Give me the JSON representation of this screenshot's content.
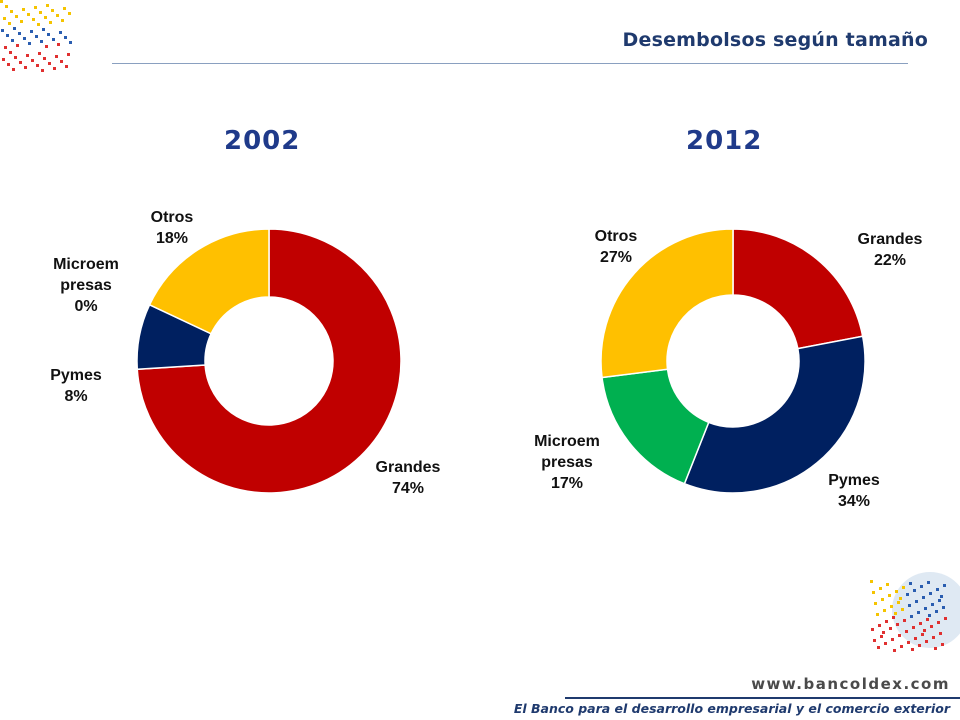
{
  "header": {
    "title": "Desembolsos según tamaño"
  },
  "footer": {
    "url": "www.bancoldex.com",
    "tagline": "El Banco para el desarrollo empresarial y el comercio exterior"
  },
  "colors": {
    "Grandes": "#c00000",
    "Pymes": "#002060",
    "Microempresas": "#00b050",
    "Otros": "#ffc000"
  },
  "chart_data": [
    {
      "type": "pie",
      "title": "2002",
      "slices": [
        {
          "name": "Grandes",
          "value": 74,
          "label_lines": [
            "Grandes",
            "74%"
          ]
        },
        {
          "name": "Pymes",
          "value": 8,
          "label_lines": [
            "Pymes",
            "8%"
          ]
        },
        {
          "name": "Microempresas",
          "value": 0,
          "label_lines": [
            "Microem",
            "presas",
            "0%"
          ]
        },
        {
          "name": "Otros",
          "value": 18,
          "label_lines": [
            "Otros",
            "18%"
          ]
        }
      ]
    },
    {
      "type": "pie",
      "title": "2012",
      "slices": [
        {
          "name": "Grandes",
          "value": 22,
          "label_lines": [
            "Grandes",
            "22%"
          ]
        },
        {
          "name": "Pymes",
          "value": 34,
          "label_lines": [
            "Pymes",
            "34%"
          ]
        },
        {
          "name": "Microempresas",
          "value": 17,
          "label_lines": [
            "Microem",
            "presas",
            "17%"
          ]
        },
        {
          "name": "Otros",
          "value": 27,
          "label_lines": [
            "Otros",
            "27%"
          ]
        }
      ]
    }
  ]
}
